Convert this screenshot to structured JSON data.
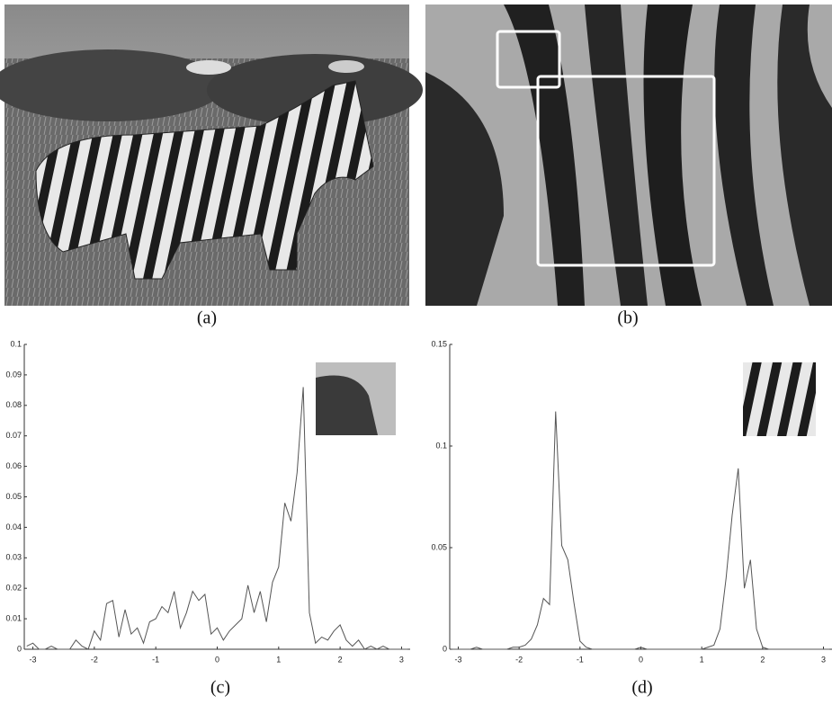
{
  "panels": {
    "a": {
      "caption": "(a)"
    },
    "b": {
      "caption": "(b)"
    },
    "c": {
      "caption": "(c)"
    },
    "d": {
      "caption": "(d)"
    }
  },
  "chart_data": [
    {
      "type": "line",
      "color": "#555555",
      "x": [
        -3.1,
        -3.0,
        -2.9,
        -2.8,
        -2.7,
        -2.6,
        -2.5,
        -2.4,
        -2.3,
        -2.2,
        -2.1,
        -2.0,
        -1.9,
        -1.8,
        -1.7,
        -1.6,
        -1.5,
        -1.4,
        -1.3,
        -1.2,
        -1.1,
        -1.0,
        -0.9,
        -0.8,
        -0.7,
        -0.6,
        -0.5,
        -0.4,
        -0.3,
        -0.2,
        -0.1,
        0.0,
        0.1,
        0.2,
        0.3,
        0.4,
        0.5,
        0.6,
        0.7,
        0.8,
        0.9,
        1.0,
        1.1,
        1.2,
        1.3,
        1.4,
        1.5,
        1.6,
        1.7,
        1.8,
        1.9,
        2.0,
        2.1,
        2.2,
        2.3,
        2.4,
        2.5,
        2.6,
        2.7,
        2.8,
        2.9,
        3.0,
        3.1
      ],
      "values": [
        0.001,
        0.002,
        0,
        0,
        0.001,
        0,
        0,
        0,
        0.003,
        0.001,
        0,
        0.006,
        0.003,
        0.015,
        0.016,
        0.004,
        0.013,
        0.005,
        0.007,
        0.002,
        0.009,
        0.01,
        0.014,
        0.012,
        0.019,
        0.007,
        0.012,
        0.019,
        0.016,
        0.018,
        0.005,
        0.007,
        0.003,
        0.006,
        0.008,
        0.01,
        0.021,
        0.012,
        0.019,
        0.009,
        0.022,
        0.027,
        0.048,
        0.042,
        0.058,
        0.086,
        0.012,
        0.002,
        0.004,
        0.003,
        0.006,
        0.008,
        0.003,
        0.001,
        0.003,
        0,
        0.001,
        0,
        0.001,
        0,
        0,
        0,
        0
      ],
      "xlim": [
        -3.14,
        3.14
      ],
      "xticks": [
        -3,
        -2,
        -1,
        0,
        1,
        2,
        3
      ],
      "ylim": [
        0,
        0.1
      ],
      "yticks": [
        0,
        0.01,
        0.02,
        0.03,
        0.04,
        0.05,
        0.06,
        0.07,
        0.08,
        0.09,
        0.1
      ]
    },
    {
      "type": "line",
      "color": "#555555",
      "x": [
        -3.1,
        -3.0,
        -2.9,
        -2.8,
        -2.7,
        -2.6,
        -2.5,
        -2.4,
        -2.3,
        -2.2,
        -2.1,
        -2.0,
        -1.9,
        -1.8,
        -1.7,
        -1.6,
        -1.5,
        -1.4,
        -1.3,
        -1.2,
        -1.1,
        -1.0,
        -0.9,
        -0.8,
        -0.7,
        -0.6,
        -0.5,
        -0.4,
        -0.3,
        -0.2,
        -0.1,
        0.0,
        0.1,
        0.2,
        0.3,
        0.4,
        0.5,
        0.6,
        0.7,
        0.8,
        0.9,
        1.0,
        1.1,
        1.2,
        1.3,
        1.4,
        1.5,
        1.6,
        1.7,
        1.8,
        1.9,
        2.0,
        2.1,
        2.2,
        2.3,
        2.4,
        2.5,
        2.6,
        2.7,
        2.8,
        2.9,
        3.0,
        3.1
      ],
      "values": [
        0,
        0,
        0,
        0,
        0.001,
        0,
        0,
        0,
        0,
        0,
        0.001,
        0.001,
        0.002,
        0.005,
        0.012,
        0.025,
        0.022,
        0.117,
        0.051,
        0.044,
        0.023,
        0.004,
        0.001,
        0,
        0,
        0,
        0,
        0,
        0,
        0,
        0,
        0.001,
        0,
        0,
        0,
        0,
        0,
        0,
        0,
        0,
        0,
        0,
        0.001,
        0.002,
        0.01,
        0.035,
        0.066,
        0.089,
        0.03,
        0.044,
        0.01,
        0.001,
        0,
        0,
        0,
        0,
        0,
        0,
        0,
        0,
        0,
        0,
        0
      ],
      "xlim": [
        -3.14,
        3.14
      ],
      "xticks": [
        -3,
        -2,
        -1,
        0,
        1,
        2,
        3
      ],
      "ylim": [
        0,
        0.15
      ],
      "yticks": [
        0,
        0.05,
        0.1,
        0.15
      ]
    }
  ]
}
